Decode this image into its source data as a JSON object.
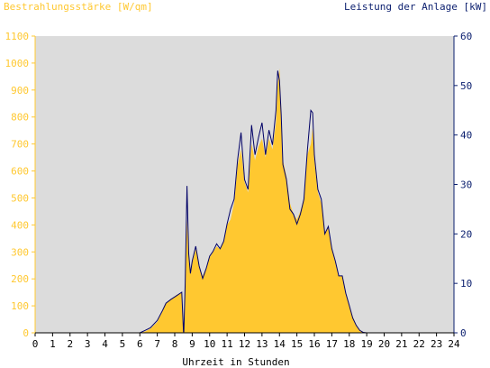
{
  "chart_data": {
    "type": "area",
    "left_title": "Bestrahlungsstärke [W/qm]",
    "right_title": "Leistung der Anlage [kW]",
    "xlabel": "Uhrzeit in Stunden",
    "x_ticks": [
      "0",
      "1",
      "2",
      "3",
      "4",
      "5",
      "6",
      "7",
      "8",
      "9",
      "10",
      "11",
      "12",
      "13",
      "14",
      "15",
      "16",
      "17",
      "18",
      "19",
      "20",
      "21",
      "22",
      "23",
      "24"
    ],
    "y_left_ticks": [
      "0",
      "100",
      "200",
      "300",
      "400",
      "500",
      "600",
      "700",
      "800",
      "900",
      "1000",
      "1100"
    ],
    "y_right_ticks": [
      "0",
      "10",
      "20",
      "30",
      "40",
      "50",
      "60"
    ],
    "xlim": [
      0,
      24
    ],
    "ylim_left": [
      0,
      1100
    ],
    "ylim_right": [
      0,
      60
    ],
    "colors": {
      "irradiance_fill": "#ffc830",
      "power_line": "#000066",
      "plot_background": "#dcdcdc",
      "left_axis_text": "#ffc830",
      "right_axis_text": "#0a1e6e"
    },
    "series": [
      {
        "role": "irradiance",
        "axis": "left",
        "style": "filled-area",
        "x": [
          0,
          6.0,
          6.3,
          6.6,
          7.0,
          7.3,
          7.5,
          7.8,
          8.1,
          8.4,
          8.5,
          8.52,
          8.6,
          8.7,
          8.8,
          8.9,
          9.0,
          9.2,
          9.4,
          9.6,
          9.8,
          10.0,
          10.2,
          10.4,
          10.6,
          10.8,
          11.0,
          11.2,
          11.4,
          11.6,
          11.8,
          12.0,
          12.2,
          12.4,
          12.6,
          12.8,
          13.0,
          13.2,
          13.4,
          13.6,
          13.8,
          13.9,
          14.0,
          14.1,
          14.2,
          14.4,
          14.6,
          14.8,
          15.0,
          15.2,
          15.4,
          15.6,
          15.8,
          15.9,
          16.0,
          16.2,
          16.4,
          16.6,
          16.8,
          17.0,
          17.2,
          17.4,
          17.6,
          17.8,
          18.0,
          18.2,
          18.4,
          18.6,
          18.8,
          19.0,
          19.2,
          24
        ],
        "y": [
          0,
          0,
          5,
          15,
          40,
          80,
          110,
          125,
          140,
          150,
          5,
          5,
          180,
          420,
          280,
          220,
          260,
          310,
          250,
          210,
          240,
          280,
          300,
          320,
          310,
          340,
          400,
          420,
          480,
          620,
          680,
          560,
          520,
          700,
          640,
          690,
          720,
          650,
          720,
          680,
          780,
          920,
          980,
          820,
          640,
          580,
          480,
          440,
          420,
          450,
          500,
          660,
          700,
          760,
          640,
          520,
          480,
          370,
          390,
          310,
          260,
          210,
          210,
          150,
          100,
          60,
          30,
          10,
          2,
          0,
          0,
          0
        ]
      },
      {
        "role": "power",
        "axis": "right",
        "style": "line",
        "x": [
          0,
          6.0,
          6.3,
          6.6,
          7.0,
          7.3,
          7.5,
          7.8,
          8.1,
          8.4,
          8.5,
          8.52,
          8.6,
          8.7,
          8.8,
          8.9,
          9.0,
          9.2,
          9.4,
          9.6,
          9.8,
          10.0,
          10.2,
          10.4,
          10.6,
          10.8,
          11.0,
          11.2,
          11.4,
          11.6,
          11.8,
          12.0,
          12.2,
          12.4,
          12.6,
          12.8,
          13.0,
          13.2,
          13.4,
          13.6,
          13.8,
          13.9,
          14.0,
          14.1,
          14.2,
          14.4,
          14.6,
          14.8,
          15.0,
          15.2,
          15.4,
          15.6,
          15.8,
          15.9,
          16.0,
          16.2,
          16.4,
          16.6,
          16.8,
          17.0,
          17.2,
          17.4,
          17.6,
          17.8,
          18.0,
          18.2,
          18.4,
          18.6,
          18.8,
          19.0,
          19.2,
          24
        ],
        "y": [
          0,
          0,
          0.5,
          1,
          2.5,
          4.5,
          6,
          6.8,
          7.5,
          8.2,
          0.2,
          0.2,
          10,
          29.7,
          16,
          12,
          14.5,
          17.5,
          13.5,
          11,
          13,
          15.5,
          16.5,
          18,
          17,
          18.5,
          22,
          25,
          27,
          35,
          40.5,
          31,
          29,
          42,
          36,
          39.5,
          42.5,
          36,
          41,
          38,
          45,
          53,
          51,
          44,
          34,
          31,
          25,
          24,
          22,
          24,
          27,
          37,
          45,
          44.5,
          36,
          29,
          27,
          20,
          21.5,
          17,
          14.5,
          11.5,
          11.5,
          8,
          5.5,
          3,
          1.5,
          0.5,
          0.1,
          0,
          0,
          0
        ]
      }
    ]
  }
}
